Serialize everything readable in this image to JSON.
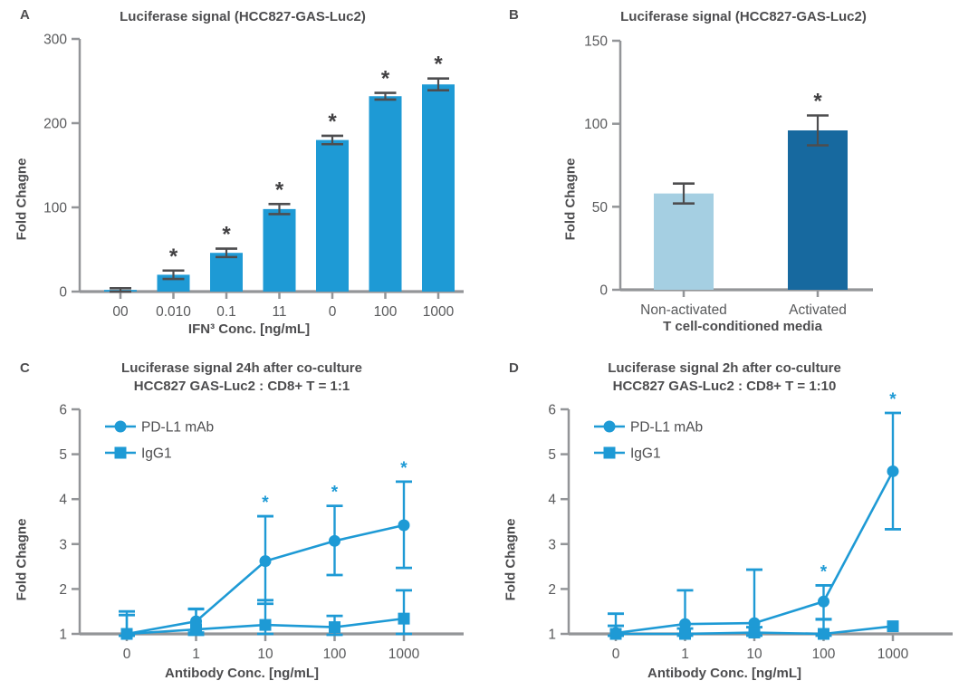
{
  "chart_data": [
    {
      "panel": "A",
      "type": "bar",
      "title": "Luciferase signal (HCC827-GAS-Luc2)",
      "ylabel": "Fold Chagne",
      "xlabel": "IFN³ Conc. [ng/mL]",
      "categories": [
        "00",
        "0.010",
        "0.1",
        "11",
        "0",
        "100",
        "1000"
      ],
      "values": [
        2,
        20,
        46,
        98,
        180,
        232,
        246
      ],
      "errors": [
        2,
        5,
        5,
        6,
        5,
        4,
        7
      ],
      "significant": [
        false,
        true,
        true,
        true,
        true,
        true,
        true
      ],
      "sig_marker": "*",
      "ylim": [
        0,
        300
      ],
      "yticks": [
        0,
        100,
        200,
        300
      ],
      "bar_color": "#1E9AD5",
      "error_color": "#4D4D4F",
      "axis_color": "#939598",
      "tick_text_color": "#58595B",
      "sig_color": "#414042",
      "grid": false
    },
    {
      "panel": "B",
      "type": "bar",
      "title": "Luciferase signal (HCC827-GAS-Luc2)",
      "ylabel": "Fold Chagne",
      "xlabel": "T cell-conditioned media",
      "categories": [
        "Non-activated",
        "Activated"
      ],
      "values": [
        58,
        96
      ],
      "errors": [
        6,
        9
      ],
      "significant": [
        false,
        true
      ],
      "sig_marker": "*",
      "ylim": [
        0,
        150
      ],
      "yticks": [
        0,
        50,
        100,
        150
      ],
      "bar_colors": [
        "#A5CFE2",
        "#17699F"
      ],
      "error_color": "#4D4D4F",
      "axis_color": "#939598",
      "tick_text_color": "#58595B",
      "sig_color": "#414042",
      "grid": false
    },
    {
      "panel": "C",
      "type": "line",
      "title": "Luciferase signal 24h after co-culture",
      "subtitle": "HCC827 GAS-Luc2 : CD8+ T = 1:1",
      "ylabel": "Fold Chagne",
      "xlabel": "Antibody Conc. [ng/mL]",
      "categories": [
        "0",
        "1",
        "10",
        "100",
        "1000"
      ],
      "ylim": [
        1,
        6
      ],
      "yticks": [
        1,
        2,
        3,
        4,
        5,
        6
      ],
      "series": [
        {
          "name": "PD-L1 mAb",
          "marker": "circle",
          "values": [
            1.0,
            1.28,
            2.62,
            3.07,
            3.42
          ],
          "err_up": [
            0.5,
            0.28,
            1.0,
            0.78,
            0.97
          ],
          "err_dn": [
            0.1,
            0.25,
            0.95,
            0.76,
            0.95
          ],
          "significant": [
            false,
            false,
            true,
            true,
            true
          ]
        },
        {
          "name": "IgG1",
          "marker": "square",
          "values": [
            1.0,
            1.1,
            1.2,
            1.15,
            1.34
          ],
          "err_up": [
            0.42,
            0.45,
            0.55,
            0.25,
            0.63
          ],
          "err_dn": [
            0.1,
            0.12,
            0.2,
            0.17,
            0.34
          ],
          "significant": [
            false,
            false,
            false,
            false,
            false
          ]
        }
      ],
      "sig_marker": "*",
      "series_color": "#1E9AD5",
      "axis_color": "#939598",
      "tick_text_color": "#58595B",
      "sig_color": "#1E9AD5",
      "legend_position": "top-left",
      "grid": false
    },
    {
      "panel": "D",
      "type": "line",
      "title": "Luciferase signal 2h after co-culture",
      "subtitle": "HCC827 GAS-Luc2 : CD8+ T = 1:10",
      "ylabel": "Fold Chagne",
      "xlabel": "Antibody Conc. [ng/mL]",
      "categories": [
        "0",
        "1",
        "10",
        "100",
        "1000"
      ],
      "ylim": [
        1,
        6
      ],
      "yticks": [
        1,
        2,
        3,
        4,
        5,
        6
      ],
      "series": [
        {
          "name": "PD-L1 mAb",
          "marker": "circle",
          "values": [
            1.02,
            1.22,
            1.24,
            1.72,
            4.62
          ],
          "err_up": [
            0.43,
            0.75,
            1.19,
            0.36,
            1.3
          ],
          "err_dn": [
            0.12,
            0.22,
            0.22,
            0.4,
            1.29
          ],
          "significant": [
            false,
            false,
            false,
            true,
            true
          ]
        },
        {
          "name": "IgG1",
          "marker": "square",
          "values": [
            1.0,
            1.0,
            1.03,
            1.0,
            1.17
          ],
          "err_up": [
            0.18,
            0.12,
            0.12,
            0.33,
            0
          ],
          "err_dn": [
            0.08,
            0.08,
            0.1,
            0.08,
            0
          ],
          "significant": [
            false,
            false,
            false,
            false,
            false
          ]
        }
      ],
      "sig_marker": "*",
      "series_color": "#1E9AD5",
      "axis_color": "#939598",
      "tick_text_color": "#58595B",
      "sig_color": "#1E9AD5",
      "legend_position": "top-left",
      "grid": false
    }
  ]
}
